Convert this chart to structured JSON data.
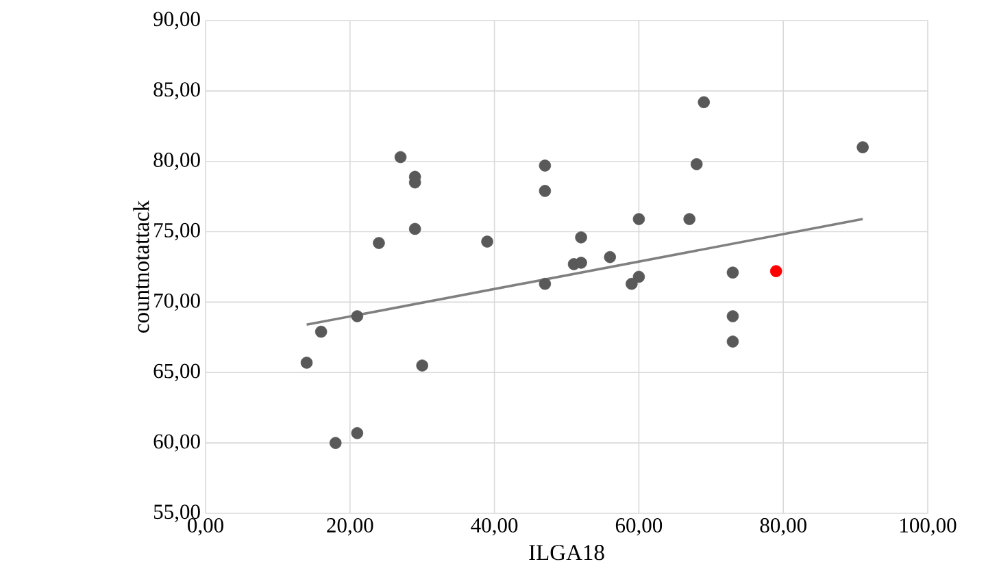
{
  "chart_data": {
    "type": "scatter",
    "xlabel": "ILGA18",
    "ylabel": "countnotattack",
    "grid": true,
    "marker": "circle",
    "xlim": [
      0,
      100
    ],
    "ylim": [
      55,
      90
    ],
    "xticks": [
      {
        "value": 0,
        "label": "0,00"
      },
      {
        "value": 20,
        "label": "20,00"
      },
      {
        "value": 40,
        "label": "40,00"
      },
      {
        "value": 60,
        "label": "60,00"
      },
      {
        "value": 80,
        "label": "80,00"
      },
      {
        "value": 100,
        "label": "100,00"
      }
    ],
    "yticks": [
      {
        "value": 55,
        "label": "55,00"
      },
      {
        "value": 60,
        "label": "60,00"
      },
      {
        "value": 65,
        "label": "65,00"
      },
      {
        "value": 70,
        "label": "70,00"
      },
      {
        "value": 75,
        "label": "75,00"
      },
      {
        "value": 80,
        "label": "80,00"
      },
      {
        "value": 85,
        "label": "85,00"
      },
      {
        "value": 90,
        "label": "90,00"
      }
    ],
    "series": [
      {
        "color": "#595959",
        "x": [
          14,
          16,
          18,
          21,
          21,
          24,
          27,
          29,
          29,
          29,
          30,
          39,
          47,
          47,
          47,
          51,
          52,
          52,
          56,
          59,
          60,
          60,
          67,
          68,
          69,
          73,
          73,
          73,
          91
        ],
        "values": [
          65.7,
          67.9,
          60,
          60.7,
          69,
          74.2,
          80.3,
          78.9,
          78.5,
          75.2,
          65.5,
          74.3,
          79.7,
          77.9,
          71.3,
          72.7,
          72.8,
          74.6,
          73.2,
          71.3,
          71.8,
          75.9,
          75.9,
          79.8,
          84.2,
          72.1,
          69,
          67.2,
          81
        ]
      },
      {
        "color": "#ff0000",
        "x": [
          79
        ],
        "values": [
          72.2
        ]
      },
      {
        "type": "line",
        "color": "#808080",
        "x": [
          14,
          91
        ],
        "values": [
          68.4,
          75.9
        ],
        "marker": "none"
      }
    ]
  }
}
